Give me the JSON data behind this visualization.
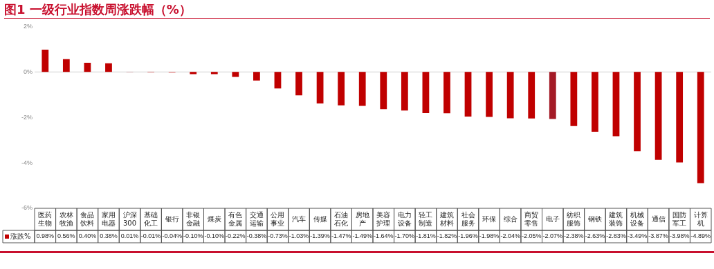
{
  "chart_data": {
    "type": "bar",
    "title": "图1  一级行业指数周涨跌幅（%）",
    "categories": [
      "医药生物",
      "农林牧渔",
      "食品饮料",
      "家用电器",
      "沪深300",
      "基础化工",
      "银行",
      "非银金融",
      "煤炭",
      "有色金属",
      "交通运输",
      "公用事业",
      "汽车",
      "传媒",
      "石油石化",
      "房地产",
      "美容护理",
      "电力设备",
      "轻工制造",
      "建筑材料",
      "社会服务",
      "环保",
      "综合",
      "商贸零售",
      "电子",
      "纺织服饰",
      "钢铁",
      "建筑装饰",
      "机械设备",
      "通信",
      "国防军工",
      "计算机"
    ],
    "series": [
      {
        "name": "涨跌%",
        "color": "#c00000",
        "colors": [
          "#c00000",
          "#c00000",
          "#c00000",
          "#c00000",
          "#a31a26",
          "#c00000",
          "#e08080",
          "#c00000",
          "#c00000",
          "#c00000",
          "#c00000",
          "#c00000",
          "#c00000",
          "#c00000",
          "#c00000",
          "#c00000",
          "#c00000",
          "#c00000",
          "#c00000",
          "#c00000",
          "#c00000",
          "#c00000",
          "#c00000",
          "#c00000",
          "#a31a26",
          "#c00000",
          "#c00000",
          "#c00000",
          "#c00000",
          "#c00000",
          "#c00000",
          "#c00000"
        ],
        "values": [
          0.98,
          0.56,
          0.4,
          0.38,
          0.01,
          -0.01,
          -0.04,
          -0.1,
          -0.1,
          -0.22,
          -0.38,
          -0.73,
          -1.03,
          -1.39,
          -1.47,
          -1.49,
          -1.64,
          -1.7,
          -1.81,
          -1.82,
          -1.96,
          -1.98,
          -2.04,
          -2.05,
          -2.07,
          -2.38,
          -2.63,
          -2.83,
          -3.49,
          -3.87,
          -3.98,
          -4.89
        ],
        "value_labels": [
          "0.98%",
          "0.56%",
          "0.40%",
          "0.38%",
          "0.01%",
          "-0.01%",
          "-0.04%",
          "-0.10%",
          "-0.10%",
          "-0.22%",
          "-0.38%",
          "-0.73%",
          "-1.03%",
          "-1.39%",
          "-1.47%",
          "-1.49%",
          "-1.64%",
          "-1.70%",
          "-1.81%",
          "-1.82%",
          "-1.96%",
          "-1.98%",
          "-2.04%",
          "-2.05%",
          "-2.07%",
          "-2.38%",
          "-2.63%",
          "-2.83%",
          "-3.49%",
          "-3.87%",
          "-3.98%",
          "-4.89%"
        ]
      }
    ],
    "ylim": [
      -6,
      2
    ],
    "yticks": [
      {
        "value": -6,
        "label": "-6%"
      },
      {
        "value": -4,
        "label": "-4%"
      },
      {
        "value": -2,
        "label": "-2%"
      },
      {
        "value": 0,
        "label": "0%"
      },
      {
        "value": 2,
        "label": "2%"
      }
    ],
    "ref_lines": [
      {
        "axis": "y",
        "value": 0,
        "color": "#d0d0d0"
      }
    ],
    "grid": false,
    "legend": "bottom left"
  }
}
